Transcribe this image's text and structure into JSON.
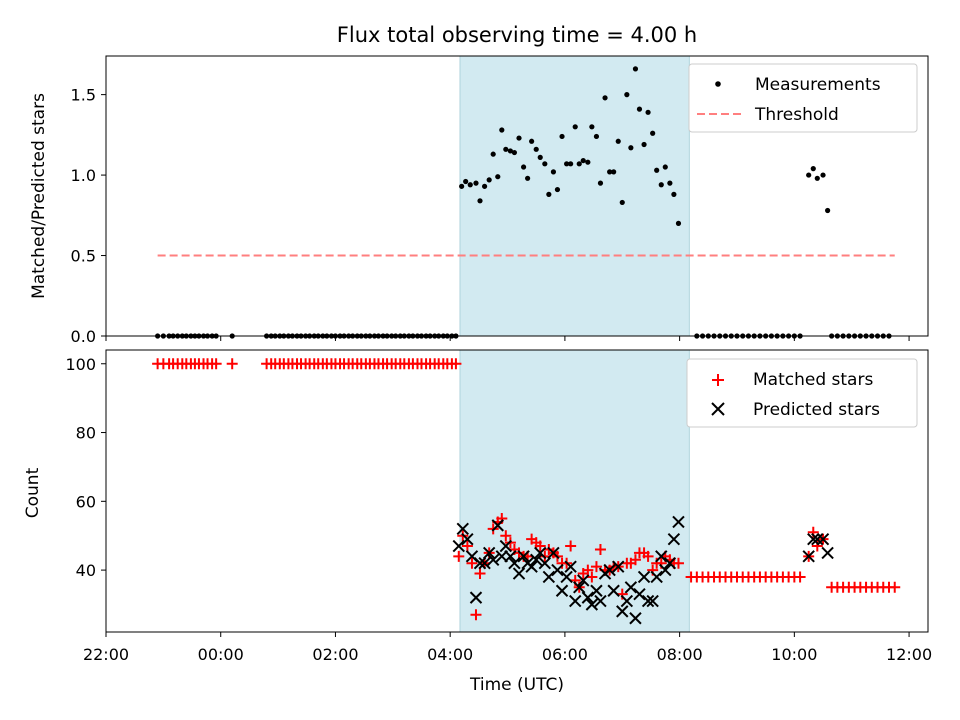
{
  "figure_title": "Flux total observing time = 4.00 h",
  "colors": {
    "shade": "#add8e6",
    "measurement": "#000000",
    "threshold": "#ff7f7f",
    "matched": "#ff0000",
    "predicted": "#000000"
  },
  "chart_data": [
    {
      "id": "ratio",
      "type": "scatter",
      "title": "Flux total observing time = 4.00 h",
      "xlabel": "",
      "ylabel": "Matched/Predicted stars",
      "xlim": [
        -2.0,
        12.33
      ],
      "ylim": [
        0,
        1.74
      ],
      "yticks": [
        "0.0",
        "0.5",
        "1.0",
        "1.5"
      ],
      "ytick_values": [
        0,
        0.5,
        1.0,
        1.5
      ],
      "shaded_interval": [
        4.17,
        8.17
      ],
      "legend_position": "upper right",
      "legend": [
        "Measurements",
        "Threshold"
      ],
      "threshold": {
        "label": "Threshold",
        "value": 0.5,
        "x_range": [
          -1.1,
          11.75
        ]
      },
      "measurements_zero_x": [
        -1.1,
        -1.0,
        -0.9,
        -0.83,
        -0.75,
        -0.67,
        -0.6,
        -0.52,
        -0.45,
        -0.38,
        -0.3,
        -0.23,
        -0.15,
        -0.08,
        0.2,
        0.8,
        0.88,
        0.95,
        1.03,
        1.1,
        1.18,
        1.25,
        1.33,
        1.4,
        1.48,
        1.55,
        1.63,
        1.7,
        1.78,
        1.85,
        1.93,
        2.0,
        2.08,
        2.15,
        2.23,
        2.3,
        2.38,
        2.45,
        2.53,
        2.6,
        2.68,
        2.75,
        2.83,
        2.9,
        2.98,
        3.05,
        3.13,
        3.2,
        3.28,
        3.35,
        3.43,
        3.5,
        3.58,
        3.65,
        3.73,
        3.8,
        3.88,
        3.95,
        4.03,
        4.1,
        8.3,
        8.4,
        8.5,
        8.6,
        8.7,
        8.8,
        8.9,
        9.0,
        9.1,
        9.2,
        9.3,
        9.4,
        9.5,
        9.6,
        9.7,
        9.8,
        9.9,
        10.0,
        10.1,
        10.65,
        10.75,
        10.85,
        10.95,
        11.05,
        11.15,
        11.25,
        11.35,
        11.45,
        11.55,
        11.65
      ],
      "measurements": [
        [
          4.2,
          0.93
        ],
        [
          4.27,
          0.96
        ],
        [
          4.35,
          0.94
        ],
        [
          4.45,
          0.95
        ],
        [
          4.52,
          0.84
        ],
        [
          4.6,
          0.93
        ],
        [
          4.68,
          0.97
        ],
        [
          4.75,
          1.13
        ],
        [
          4.83,
          0.99
        ],
        [
          4.9,
          1.28
        ],
        [
          4.97,
          1.16
        ],
        [
          5.05,
          1.15
        ],
        [
          5.12,
          1.14
        ],
        [
          5.2,
          1.23
        ],
        [
          5.28,
          1.05
        ],
        [
          5.35,
          0.98
        ],
        [
          5.42,
          1.21
        ],
        [
          5.5,
          1.16
        ],
        [
          5.57,
          1.11
        ],
        [
          5.65,
          1.07
        ],
        [
          5.72,
          0.88
        ],
        [
          5.8,
          1.02
        ],
        [
          5.87,
          0.91
        ],
        [
          5.95,
          1.24
        ],
        [
          6.03,
          1.07
        ],
        [
          6.1,
          1.07
        ],
        [
          6.18,
          1.3
        ],
        [
          6.25,
          1.07
        ],
        [
          6.32,
          1.09
        ],
        [
          6.4,
          1.08
        ],
        [
          6.47,
          1.3
        ],
        [
          6.55,
          1.24
        ],
        [
          6.62,
          0.95
        ],
        [
          6.7,
          1.48
        ],
        [
          6.78,
          1.02
        ],
        [
          6.85,
          1.02
        ],
        [
          6.93,
          1.21
        ],
        [
          7.0,
          0.83
        ],
        [
          7.08,
          1.5
        ],
        [
          7.15,
          1.17
        ],
        [
          7.23,
          1.66
        ],
        [
          7.3,
          1.41
        ],
        [
          7.38,
          1.19
        ],
        [
          7.45,
          1.39
        ],
        [
          7.53,
          1.26
        ],
        [
          7.6,
          1.03
        ],
        [
          7.68,
          0.94
        ],
        [
          7.75,
          1.05
        ],
        [
          7.83,
          0.95
        ],
        [
          7.9,
          0.88
        ],
        [
          7.98,
          0.7
        ],
        [
          10.25,
          1.0
        ],
        [
          10.33,
          1.04
        ],
        [
          10.4,
          0.98
        ],
        [
          10.5,
          1.0
        ],
        [
          10.58,
          0.78
        ]
      ]
    },
    {
      "id": "counts",
      "type": "scatter",
      "title": "",
      "xlabel": "Time (UTC)",
      "ylabel": "Count",
      "xlim": [
        -2.0,
        12.33
      ],
      "ylim": [
        22,
        104
      ],
      "yticks": [
        "40",
        "60",
        "80",
        "100"
      ],
      "ytick_values": [
        40,
        60,
        80,
        100
      ],
      "xticks": [
        "22:00",
        "00:00",
        "02:00",
        "04:00",
        "06:00",
        "08:00",
        "10:00",
        "12:00"
      ],
      "xtick_values": [
        -2,
        0,
        2,
        4,
        6,
        8,
        10,
        12
      ],
      "shaded_interval": [
        4.17,
        8.17
      ],
      "legend_position": "upper right",
      "legend": [
        "Matched stars",
        "Predicted stars"
      ],
      "matched_100_x": [
        -1.1,
        -1.0,
        -0.9,
        -0.83,
        -0.75,
        -0.67,
        -0.6,
        -0.52,
        -0.45,
        -0.38,
        -0.3,
        -0.23,
        -0.15,
        -0.08,
        0.2,
        0.8,
        0.88,
        0.95,
        1.03,
        1.1,
        1.18,
        1.25,
        1.33,
        1.4,
        1.48,
        1.55,
        1.63,
        1.7,
        1.78,
        1.85,
        1.93,
        2.0,
        2.08,
        2.15,
        2.23,
        2.3,
        2.38,
        2.45,
        2.53,
        2.6,
        2.68,
        2.75,
        2.83,
        2.9,
        2.98,
        3.05,
        3.13,
        3.2,
        3.28,
        3.35,
        3.43,
        3.5,
        3.58,
        3.65,
        3.73,
        3.8,
        3.88,
        3.95,
        4.03,
        4.1
      ],
      "matched_38_x": [
        8.2,
        8.3,
        8.4,
        8.5,
        8.6,
        8.7,
        8.8,
        8.9,
        9.0,
        9.1,
        9.2,
        9.3,
        9.4,
        9.5,
        9.6,
        9.7,
        9.8,
        9.9,
        10.0,
        10.1
      ],
      "matched_35_x": [
        10.65,
        10.75,
        10.85,
        10.95,
        11.05,
        11.15,
        11.25,
        11.35,
        11.45,
        11.55,
        11.65,
        11.75
      ],
      "matched": [
        [
          4.15,
          44
        ],
        [
          4.22,
          50
        ],
        [
          4.3,
          47
        ],
        [
          4.38,
          42
        ],
        [
          4.45,
          27
        ],
        [
          4.52,
          39
        ],
        [
          4.6,
          42
        ],
        [
          4.68,
          45
        ],
        [
          4.75,
          52
        ],
        [
          4.83,
          54
        ],
        [
          4.9,
          55
        ],
        [
          4.97,
          50
        ],
        [
          5.05,
          48
        ],
        [
          5.12,
          46
        ],
        [
          5.2,
          45
        ],
        [
          5.28,
          44
        ],
        [
          5.35,
          44
        ],
        [
          5.42,
          49
        ],
        [
          5.5,
          48
        ],
        [
          5.57,
          47
        ],
        [
          5.65,
          44
        ],
        [
          5.72,
          46
        ],
        [
          5.8,
          45
        ],
        [
          5.87,
          44
        ],
        [
          5.95,
          42
        ],
        [
          6.03,
          42
        ],
        [
          6.1,
          47
        ],
        [
          6.18,
          37
        ],
        [
          6.25,
          35
        ],
        [
          6.32,
          39
        ],
        [
          6.4,
          40
        ],
        [
          6.47,
          38
        ],
        [
          6.55,
          41
        ],
        [
          6.62,
          46
        ],
        [
          6.7,
          40
        ],
        [
          6.78,
          40
        ],
        [
          6.85,
          41
        ],
        [
          6.93,
          41
        ],
        [
          7.0,
          33
        ],
        [
          7.08,
          42
        ],
        [
          7.15,
          42
        ],
        [
          7.23,
          43
        ],
        [
          7.3,
          45
        ],
        [
          7.38,
          45
        ],
        [
          7.45,
          44
        ],
        [
          7.53,
          40
        ],
        [
          7.6,
          42
        ],
        [
          7.68,
          42
        ],
        [
          7.75,
          44
        ],
        [
          7.83,
          43
        ],
        [
          7.9,
          42
        ],
        [
          7.98,
          42
        ],
        [
          10.25,
          44
        ],
        [
          10.33,
          51
        ],
        [
          10.4,
          47
        ],
        [
          10.5,
          49
        ]
      ],
      "predicted": [
        [
          4.15,
          47
        ],
        [
          4.22,
          52
        ],
        [
          4.3,
          49
        ],
        [
          4.38,
          44
        ],
        [
          4.45,
          32
        ],
        [
          4.52,
          42
        ],
        [
          4.6,
          42
        ],
        [
          4.68,
          45
        ],
        [
          4.75,
          43
        ],
        [
          4.83,
          53
        ],
        [
          4.9,
          44
        ],
        [
          4.97,
          47
        ],
        [
          5.05,
          44
        ],
        [
          5.12,
          42
        ],
        [
          5.2,
          39
        ],
        [
          5.28,
          44
        ],
        [
          5.35,
          42
        ],
        [
          5.42,
          41
        ],
        [
          5.5,
          43
        ],
        [
          5.57,
          45
        ],
        [
          5.65,
          42
        ],
        [
          5.72,
          38
        ],
        [
          5.8,
          45
        ],
        [
          5.87,
          40
        ],
        [
          5.95,
          34
        ],
        [
          6.03,
          38
        ],
        [
          6.1,
          41
        ],
        [
          6.18,
          31
        ],
        [
          6.25,
          35
        ],
        [
          6.32,
          37
        ],
        [
          6.4,
          32
        ],
        [
          6.47,
          30
        ],
        [
          6.55,
          34
        ],
        [
          6.62,
          31
        ],
        [
          6.7,
          39
        ],
        [
          6.78,
          40
        ],
        [
          6.85,
          34
        ],
        [
          6.93,
          41
        ],
        [
          7.0,
          28
        ],
        [
          7.08,
          31
        ],
        [
          7.15,
          35
        ],
        [
          7.23,
          26
        ],
        [
          7.3,
          33
        ],
        [
          7.38,
          38
        ],
        [
          7.45,
          31
        ],
        [
          7.53,
          31
        ],
        [
          7.6,
          38
        ],
        [
          7.68,
          44
        ],
        [
          7.75,
          40
        ],
        [
          7.83,
          42
        ],
        [
          7.9,
          49
        ],
        [
          7.98,
          54
        ],
        [
          10.25,
          44
        ],
        [
          10.33,
          49
        ],
        [
          10.4,
          49
        ],
        [
          10.5,
          49
        ],
        [
          10.58,
          45
        ]
      ]
    }
  ]
}
